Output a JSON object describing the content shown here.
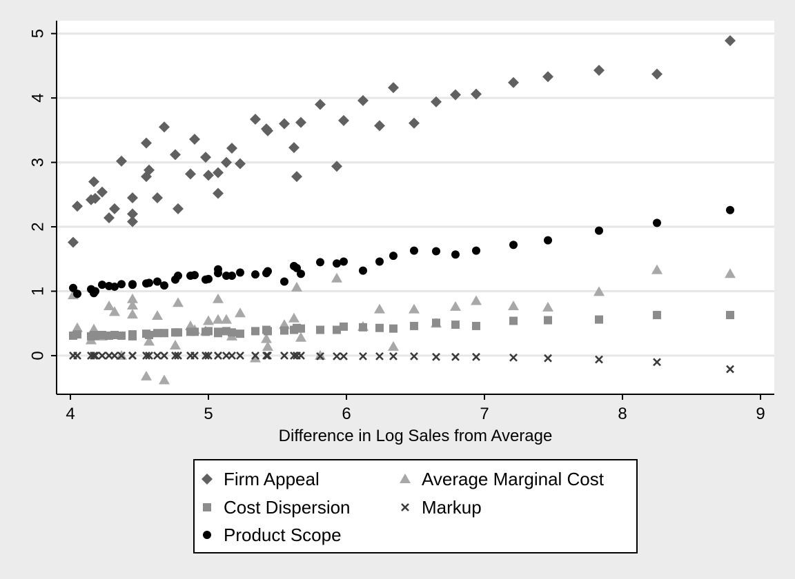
{
  "chart_data": {
    "type": "scatter",
    "xlabel": "Difference in Log Sales from Average",
    "ylabel": "",
    "xlim": [
      3.9,
      9.1
    ],
    "ylim": [
      -0.6,
      5.2
    ],
    "x_ticks": [
      4,
      5,
      6,
      7,
      8,
      9
    ],
    "y_ticks": [
      0,
      1,
      2,
      3,
      4,
      5
    ],
    "grid": "horizontal",
    "legend_position": "bottom",
    "colors": {
      "background": "#ececec",
      "plot_area": "#ffffff",
      "grid": "#e6e6e6"
    },
    "series": [
      {
        "name": "Firm Appeal",
        "marker": "diamond",
        "color": "#606060",
        "points": [
          [
            4.02,
            1.76
          ],
          [
            4.05,
            2.32
          ],
          [
            4.15,
            2.42
          ],
          [
            4.17,
            2.7
          ],
          [
            4.18,
            2.44
          ],
          [
            4.23,
            2.54
          ],
          [
            4.28,
            2.14
          ],
          [
            4.32,
            2.28
          ],
          [
            4.37,
            3.02
          ],
          [
            4.45,
            2.45
          ],
          [
            4.45,
            2.2
          ],
          [
            4.45,
            2.08
          ],
          [
            4.55,
            3.3
          ],
          [
            4.55,
            2.78
          ],
          [
            4.57,
            2.88
          ],
          [
            4.63,
            2.45
          ],
          [
            4.68,
            3.55
          ],
          [
            4.76,
            3.12
          ],
          [
            4.78,
            2.28
          ],
          [
            4.87,
            2.82
          ],
          [
            4.9,
            3.36
          ],
          [
            4.98,
            3.08
          ],
          [
            5.0,
            2.8
          ],
          [
            5.07,
            2.84
          ],
          [
            5.07,
            2.52
          ],
          [
            5.13,
            3.0
          ],
          [
            5.17,
            3.22
          ],
          [
            5.23,
            2.98
          ],
          [
            5.34,
            3.67
          ],
          [
            5.42,
            3.52
          ],
          [
            5.43,
            3.49
          ],
          [
            5.55,
            3.6
          ],
          [
            5.62,
            3.23
          ],
          [
            5.64,
            2.78
          ],
          [
            5.67,
            3.62
          ],
          [
            5.81,
            3.9
          ],
          [
            5.93,
            2.94
          ],
          [
            5.98,
            3.65
          ],
          [
            6.12,
            3.96
          ],
          [
            6.24,
            3.57
          ],
          [
            6.34,
            4.16
          ],
          [
            6.49,
            3.61
          ],
          [
            6.65,
            3.94
          ],
          [
            6.79,
            4.05
          ],
          [
            6.94,
            4.06
          ],
          [
            7.21,
            4.24
          ],
          [
            7.46,
            4.33
          ],
          [
            7.83,
            4.43
          ],
          [
            8.25,
            4.37
          ],
          [
            8.78,
            4.89
          ]
        ]
      },
      {
        "name": "Average Marginal Cost",
        "marker": "triangle",
        "color": "#a8a8a8",
        "points": [
          [
            4.02,
            0.94
          ],
          [
            4.05,
            0.43
          ],
          [
            4.15,
            0.24
          ],
          [
            4.17,
            0.41
          ],
          [
            4.18,
            0.3
          ],
          [
            4.23,
            0.3
          ],
          [
            4.28,
            0.77
          ],
          [
            4.32,
            0.68
          ],
          [
            4.37,
            0.0
          ],
          [
            4.45,
            0.88
          ],
          [
            4.45,
            0.78
          ],
          [
            4.45,
            0.64
          ],
          [
            4.55,
            -0.32
          ],
          [
            4.57,
            0.22
          ],
          [
            4.63,
            0.62
          ],
          [
            4.68,
            -0.38
          ],
          [
            4.76,
            0.16
          ],
          [
            4.78,
            0.82
          ],
          [
            4.87,
            0.46
          ],
          [
            4.9,
            0.4
          ],
          [
            4.98,
            0.38
          ],
          [
            5.0,
            0.54
          ],
          [
            5.07,
            0.88
          ],
          [
            5.07,
            0.56
          ],
          [
            5.13,
            0.56
          ],
          [
            5.17,
            0.3
          ],
          [
            5.23,
            0.66
          ],
          [
            5.34,
            -0.04
          ],
          [
            5.42,
            0.26
          ],
          [
            5.43,
            0.14
          ],
          [
            5.55,
            0.48
          ],
          [
            5.62,
            0.58
          ],
          [
            5.64,
            1.06
          ],
          [
            5.67,
            0.28
          ],
          [
            5.81,
            0.0
          ],
          [
            5.93,
            1.2
          ],
          [
            6.12,
            0.45
          ],
          [
            6.24,
            0.72
          ],
          [
            6.34,
            0.14
          ],
          [
            6.49,
            0.72
          ],
          [
            6.65,
            0.5
          ],
          [
            6.79,
            0.76
          ],
          [
            6.94,
            0.85
          ],
          [
            7.21,
            0.77
          ],
          [
            7.46,
            0.75
          ],
          [
            7.83,
            0.99
          ],
          [
            8.25,
            1.33
          ],
          [
            8.78,
            1.27
          ]
        ]
      },
      {
        "name": "Cost Dispersion",
        "marker": "square",
        "color": "#8c8c8c",
        "points": [
          [
            4.02,
            0.31
          ],
          [
            4.05,
            0.33
          ],
          [
            4.15,
            0.3
          ],
          [
            4.17,
            0.32
          ],
          [
            4.18,
            0.31
          ],
          [
            4.23,
            0.32
          ],
          [
            4.28,
            0.31
          ],
          [
            4.32,
            0.32
          ],
          [
            4.37,
            0.31
          ],
          [
            4.45,
            0.33
          ],
          [
            4.45,
            0.3
          ],
          [
            4.55,
            0.34
          ],
          [
            4.57,
            0.32
          ],
          [
            4.63,
            0.35
          ],
          [
            4.68,
            0.35
          ],
          [
            4.76,
            0.36
          ],
          [
            4.78,
            0.36
          ],
          [
            4.87,
            0.37
          ],
          [
            4.9,
            0.37
          ],
          [
            4.98,
            0.37
          ],
          [
            5.0,
            0.38
          ],
          [
            5.07,
            0.37
          ],
          [
            5.07,
            0.35
          ],
          [
            5.13,
            0.38
          ],
          [
            5.17,
            0.36
          ],
          [
            5.23,
            0.34
          ],
          [
            5.34,
            0.38
          ],
          [
            5.42,
            0.4
          ],
          [
            5.43,
            0.38
          ],
          [
            5.55,
            0.39
          ],
          [
            5.62,
            0.4
          ],
          [
            5.64,
            0.43
          ],
          [
            5.67,
            0.42
          ],
          [
            5.81,
            0.4
          ],
          [
            5.93,
            0.4
          ],
          [
            5.98,
            0.45
          ],
          [
            6.12,
            0.44
          ],
          [
            6.24,
            0.43
          ],
          [
            6.34,
            0.42
          ],
          [
            6.49,
            0.46
          ],
          [
            6.65,
            0.51
          ],
          [
            6.79,
            0.48
          ],
          [
            6.94,
            0.46
          ],
          [
            7.21,
            0.54
          ],
          [
            7.46,
            0.55
          ],
          [
            7.83,
            0.56
          ],
          [
            8.25,
            0.63
          ],
          [
            8.78,
            0.63
          ]
        ]
      },
      {
        "name": "Markup",
        "marker": "cross",
        "color": "#3a3a3a",
        "points": [
          [
            4.02,
            0.0
          ],
          [
            4.05,
            0.0
          ],
          [
            4.15,
            0.0
          ],
          [
            4.17,
            0.0
          ],
          [
            4.18,
            0.0
          ],
          [
            4.23,
            0.0
          ],
          [
            4.28,
            0.0
          ],
          [
            4.32,
            0.0
          ],
          [
            4.37,
            0.0
          ],
          [
            4.45,
            0.0
          ],
          [
            4.45,
            0.0
          ],
          [
            4.55,
            0.0
          ],
          [
            4.57,
            0.0
          ],
          [
            4.63,
            0.0
          ],
          [
            4.68,
            0.0
          ],
          [
            4.76,
            0.0
          ],
          [
            4.78,
            0.0
          ],
          [
            4.87,
            0.0
          ],
          [
            4.9,
            0.0
          ],
          [
            4.98,
            0.0
          ],
          [
            5.0,
            0.0
          ],
          [
            5.07,
            0.0
          ],
          [
            5.07,
            0.0
          ],
          [
            5.13,
            0.0
          ],
          [
            5.17,
            0.0
          ],
          [
            5.23,
            0.0
          ],
          [
            5.34,
            0.0
          ],
          [
            5.42,
            0.0
          ],
          [
            5.43,
            0.0
          ],
          [
            5.55,
            0.0
          ],
          [
            5.62,
            0.0
          ],
          [
            5.64,
            0.0
          ],
          [
            5.67,
            0.0
          ],
          [
            5.81,
            -0.01
          ],
          [
            5.93,
            -0.01
          ],
          [
            5.98,
            -0.01
          ],
          [
            6.12,
            -0.01
          ],
          [
            6.24,
            -0.01
          ],
          [
            6.34,
            -0.01
          ],
          [
            6.49,
            -0.01
          ],
          [
            6.65,
            -0.02
          ],
          [
            6.79,
            -0.02
          ],
          [
            6.94,
            -0.02
          ],
          [
            7.21,
            -0.03
          ],
          [
            7.46,
            -0.04
          ],
          [
            7.83,
            -0.06
          ],
          [
            8.25,
            -0.1
          ],
          [
            8.78,
            -0.21
          ]
        ]
      },
      {
        "name": "Product Scope",
        "marker": "circle",
        "color": "#000000",
        "points": [
          [
            4.02,
            1.05
          ],
          [
            4.05,
            0.96
          ],
          [
            4.15,
            1.03
          ],
          [
            4.17,
            0.97
          ],
          [
            4.18,
            1.0
          ],
          [
            4.23,
            1.1
          ],
          [
            4.28,
            1.08
          ],
          [
            4.32,
            1.07
          ],
          [
            4.37,
            1.11
          ],
          [
            4.45,
            1.11
          ],
          [
            4.45,
            1.1
          ],
          [
            4.55,
            1.12
          ],
          [
            4.57,
            1.13
          ],
          [
            4.63,
            1.15
          ],
          [
            4.68,
            1.09
          ],
          [
            4.76,
            1.18
          ],
          [
            4.78,
            1.24
          ],
          [
            4.87,
            1.24
          ],
          [
            4.9,
            1.25
          ],
          [
            4.98,
            1.18
          ],
          [
            5.0,
            1.19
          ],
          [
            5.07,
            1.28
          ],
          [
            5.07,
            1.34
          ],
          [
            5.13,
            1.24
          ],
          [
            5.17,
            1.24
          ],
          [
            5.23,
            1.29
          ],
          [
            5.34,
            1.26
          ],
          [
            5.42,
            1.28
          ],
          [
            5.43,
            1.31
          ],
          [
            5.55,
            1.15
          ],
          [
            5.62,
            1.39
          ],
          [
            5.64,
            1.36
          ],
          [
            5.67,
            1.27
          ],
          [
            5.81,
            1.45
          ],
          [
            5.93,
            1.43
          ],
          [
            5.98,
            1.46
          ],
          [
            6.12,
            1.32
          ],
          [
            6.24,
            1.46
          ],
          [
            6.34,
            1.55
          ],
          [
            6.49,
            1.63
          ],
          [
            6.65,
            1.62
          ],
          [
            6.79,
            1.57
          ],
          [
            6.94,
            1.63
          ],
          [
            7.21,
            1.72
          ],
          [
            7.46,
            1.79
          ],
          [
            7.83,
            1.94
          ],
          [
            8.25,
            2.06
          ],
          [
            8.78,
            2.26
          ]
        ]
      }
    ],
    "legend": [
      {
        "label": "Firm Appeal",
        "marker": "diamond",
        "color": "#606060"
      },
      {
        "label": "Average Marginal Cost",
        "marker": "triangle",
        "color": "#a8a8a8"
      },
      {
        "label": "Cost Dispersion",
        "marker": "square",
        "color": "#8c8c8c"
      },
      {
        "label": "Markup",
        "marker": "cross",
        "color": "#3a3a3a"
      },
      {
        "label": "Product Scope",
        "marker": "circle",
        "color": "#000000"
      }
    ]
  }
}
